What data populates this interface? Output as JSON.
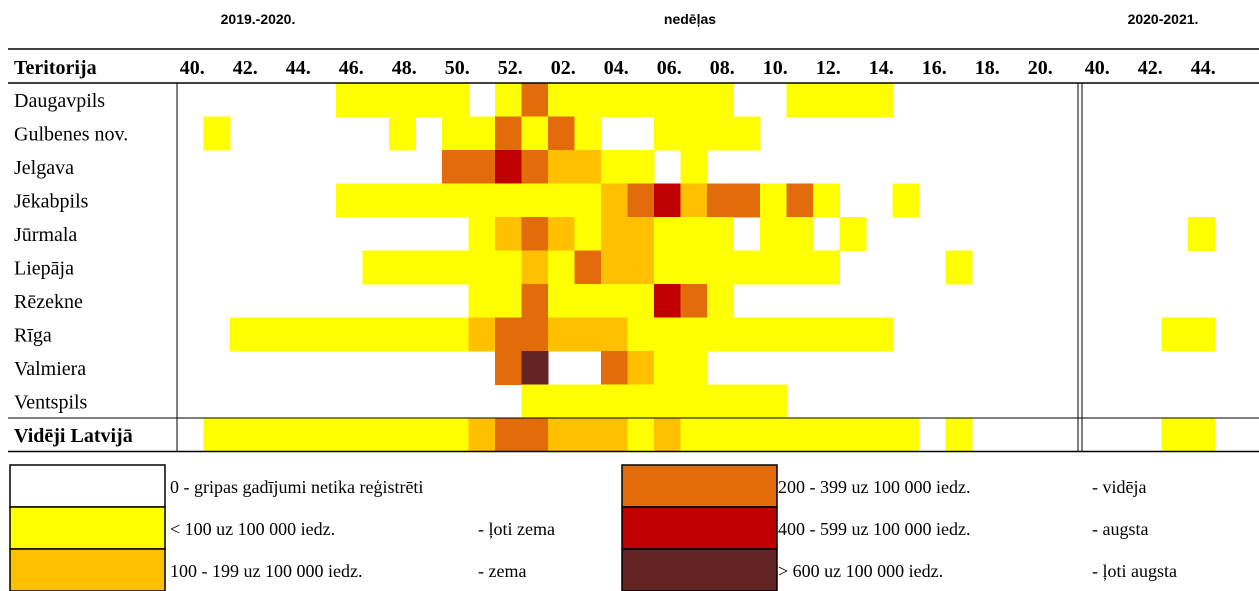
{
  "chart_data": {
    "type": "heatmap",
    "top_labels": {
      "left": "2019.-2020.",
      "center": "nedēļas",
      "right": "2020-2021."
    },
    "row_header": "Teritorija",
    "week_labels": [
      "40.",
      "42.",
      "44.",
      "46.",
      "48.",
      "50.",
      "52.",
      "02.",
      "04.",
      "06.",
      "08.",
      "10.",
      "12.",
      "14.",
      "16.",
      "18.",
      "20.",
      "40.",
      "42.",
      "44."
    ],
    "weeks_per_season": [
      34,
      5
    ],
    "rows": [
      {
        "name": "Daugavpils",
        "levels": [
          0,
          0,
          0,
          0,
          0,
          0,
          1,
          1,
          1,
          1,
          1,
          0,
          1,
          3,
          1,
          1,
          1,
          1,
          1,
          1,
          1,
          0,
          0,
          1,
          1,
          1,
          1,
          0,
          0,
          0,
          0,
          0,
          0,
          0,
          0,
          0,
          0,
          0,
          0
        ]
      },
      {
        "name": "Gulbenes nov.",
        "levels": [
          0,
          1,
          0,
          0,
          0,
          0,
          0,
          0,
          1,
          0,
          1,
          1,
          3,
          1,
          3,
          1,
          0,
          0,
          1,
          1,
          1,
          1,
          0,
          0,
          0,
          0,
          0,
          0,
          0,
          0,
          0,
          0,
          0,
          0,
          0,
          0,
          0,
          0,
          0
        ]
      },
      {
        "name": "Jelgava",
        "levels": [
          0,
          0,
          0,
          0,
          0,
          0,
          0,
          0,
          0,
          0,
          3,
          3,
          4,
          3,
          2,
          2,
          1,
          1,
          0,
          1,
          0,
          0,
          0,
          0,
          0,
          0,
          0,
          0,
          0,
          0,
          0,
          0,
          0,
          0,
          0,
          0,
          0,
          0,
          0
        ]
      },
      {
        "name": "Jēkabpils",
        "levels": [
          0,
          0,
          0,
          0,
          0,
          0,
          1,
          1,
          1,
          1,
          1,
          1,
          1,
          1,
          1,
          1,
          2,
          3,
          4,
          2,
          3,
          3,
          1,
          3,
          1,
          0,
          0,
          1,
          0,
          0,
          0,
          0,
          0,
          0,
          0,
          0,
          0,
          0,
          0
        ]
      },
      {
        "name": "Jūrmala",
        "levels": [
          0,
          0,
          0,
          0,
          0,
          0,
          0,
          0,
          0,
          0,
          0,
          1,
          2,
          3,
          2,
          1,
          2,
          2,
          1,
          1,
          1,
          0,
          1,
          1,
          0,
          1,
          0,
          0,
          0,
          0,
          0,
          0,
          0,
          0,
          0,
          0,
          0,
          0,
          1
        ]
      },
      {
        "name": "Liepāja",
        "levels": [
          0,
          0,
          0,
          0,
          0,
          0,
          0,
          1,
          1,
          1,
          1,
          1,
          1,
          2,
          1,
          3,
          2,
          2,
          1,
          1,
          1,
          1,
          1,
          1,
          1,
          0,
          0,
          0,
          0,
          1,
          0,
          0,
          0,
          0,
          0,
          0,
          0,
          0,
          0
        ]
      },
      {
        "name": "Rēzekne",
        "levels": [
          0,
          0,
          0,
          0,
          0,
          0,
          0,
          0,
          0,
          0,
          0,
          1,
          1,
          3,
          1,
          1,
          1,
          1,
          4,
          3,
          1,
          0,
          0,
          0,
          0,
          0,
          0,
          0,
          0,
          0,
          0,
          0,
          0,
          0,
          0,
          0,
          0,
          0,
          0
        ]
      },
      {
        "name": "Rīga",
        "levels": [
          0,
          0,
          1,
          1,
          1,
          1,
          1,
          1,
          1,
          1,
          1,
          2,
          3,
          3,
          2,
          2,
          2,
          1,
          1,
          1,
          1,
          1,
          1,
          1,
          1,
          1,
          1,
          0,
          0,
          0,
          0,
          0,
          0,
          0,
          0,
          0,
          0,
          1,
          1
        ]
      },
      {
        "name": "Valmiera",
        "levels": [
          0,
          0,
          0,
          0,
          0,
          0,
          0,
          0,
          0,
          0,
          0,
          0,
          3,
          5,
          0,
          0,
          3,
          2,
          1,
          1,
          0,
          0,
          0,
          0,
          0,
          0,
          0,
          0,
          0,
          0,
          0,
          0,
          0,
          0,
          0,
          0,
          0,
          0,
          0
        ]
      },
      {
        "name": "Ventspils",
        "levels": [
          0,
          0,
          0,
          0,
          0,
          0,
          0,
          0,
          0,
          0,
          0,
          0,
          0,
          1,
          1,
          1,
          1,
          1,
          1,
          1,
          1,
          1,
          1,
          0,
          0,
          0,
          0,
          0,
          0,
          0,
          0,
          0,
          0,
          0,
          0,
          0,
          0,
          0,
          0
        ]
      },
      {
        "name": "Vidēji Latvijā",
        "bold": true,
        "levels": [
          0,
          1,
          1,
          1,
          1,
          1,
          1,
          1,
          1,
          1,
          1,
          2,
          3,
          3,
          2,
          2,
          2,
          1,
          2,
          1,
          1,
          1,
          1,
          1,
          1,
          1,
          1,
          1,
          0,
          1,
          0,
          0,
          0,
          0,
          0,
          0,
          0,
          1,
          1
        ]
      }
    ],
    "legend": [
      {
        "level": 0,
        "color": "#FFFFFF",
        "text": "0 - gripas gadījumi netika reģistrēti",
        "category": ""
      },
      {
        "level": 1,
        "color": "#FFFF00",
        "text": "< 100 uz 100 000 iedz.",
        "category": "- ļoti zema"
      },
      {
        "level": 2,
        "color": "#FFC000",
        "text": "100 - 199 uz 100 000 iedz.",
        "category": "- zema"
      },
      {
        "level": 3,
        "color": "#E36C0A",
        "text": "200 - 399 uz 100 000 iedz.",
        "category": "- vidēja"
      },
      {
        "level": 4,
        "color": "#C00000",
        "text": "400 - 599 uz 100 000 iedz.",
        "category": "- augsta"
      },
      {
        "level": 5,
        "color": "#632523",
        "text": "> 600 uz 100 000 iedz.",
        "category": "- ļoti augsta"
      }
    ]
  }
}
